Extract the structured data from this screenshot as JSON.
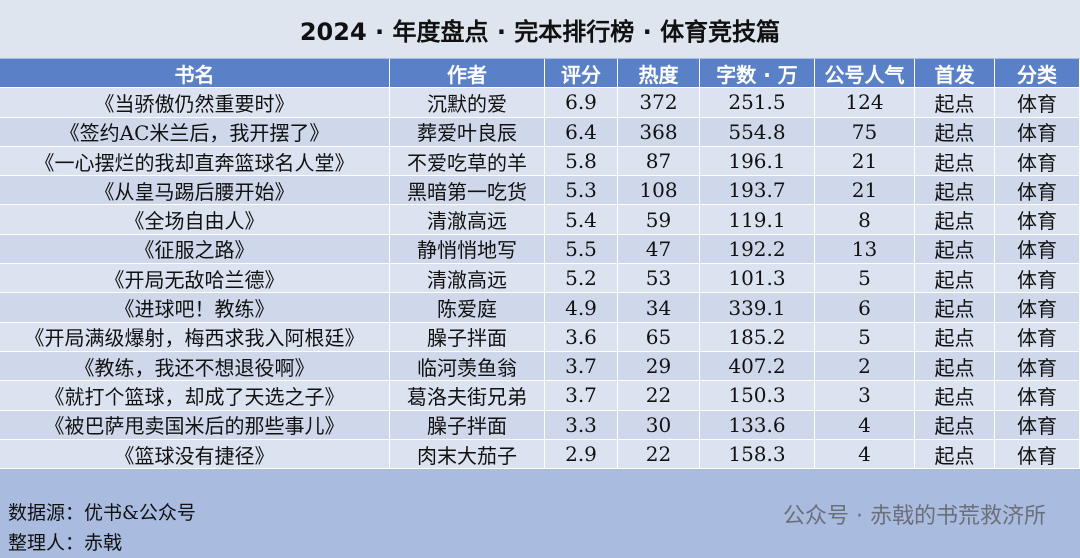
{
  "header": {
    "title": "2024 · 年度盘点 · 完本排行榜 · 体育竞技篇"
  },
  "table": {
    "columns": [
      "书名",
      "作者",
      "评分",
      "热度",
      "字数 · 万",
      "公号人气",
      "首发",
      "分类"
    ],
    "rows": [
      [
        "《当骄傲仍然重要时》",
        "沉默的爱",
        6.9,
        372,
        251.5,
        124,
        "起点",
        "体育"
      ],
      [
        "《签约AC米兰后，我开摆了》",
        "葬爱叶良辰",
        6.4,
        368,
        554.8,
        75,
        "起点",
        "体育"
      ],
      [
        "《一心摆烂的我却直奔篮球名人堂》",
        "不爱吃草的羊",
        5.8,
        87,
        196.1,
        21,
        "起点",
        "体育"
      ],
      [
        "《从皇马踢后腰开始》",
        "黑暗第一吃货",
        5.3,
        108,
        193.7,
        21,
        "起点",
        "体育"
      ],
      [
        "《全场自由人》",
        "清澈高远",
        5.4,
        59,
        119.1,
        8,
        "起点",
        "体育"
      ],
      [
        "《征服之路》",
        "静悄悄地写",
        5.5,
        47,
        192.2,
        13,
        "起点",
        "体育"
      ],
      [
        "《开局无敌哈兰德》",
        "清澈高远",
        5.2,
        53,
        101.3,
        5,
        "起点",
        "体育"
      ],
      [
        "《进球吧！教练》",
        "陈爱庭",
        4.9,
        34,
        339.1,
        6,
        "起点",
        "体育"
      ],
      [
        "《开局满级爆射，梅西求我入阿根廷》",
        "臊子拌面",
        3.6,
        65,
        185.2,
        5,
        "起点",
        "体育"
      ],
      [
        "《教练，我还不想退役啊》",
        "临河羡鱼翁",
        3.7,
        29,
        407.2,
        2,
        "起点",
        "体育"
      ],
      [
        "《就打个篮球，却成了天选之子》",
        "葛洛夫街兄弟",
        3.7,
        22,
        150.3,
        3,
        "起点",
        "体育"
      ],
      [
        "《被巴萨甩卖国米后的那些事儿》",
        "臊子拌面",
        3.3,
        30,
        133.6,
        4,
        "起点",
        "体育"
      ],
      [
        "《篮球没有捷径》",
        "肉末大茄子",
        2.9,
        22,
        158.3,
        4,
        "起点",
        "体育"
      ]
    ]
  },
  "footer": {
    "source": "数据源：优书&公众号",
    "organizer": "整理人：赤戟"
  },
  "watermark": "公众号 · 赤戟的书荒救济所"
}
